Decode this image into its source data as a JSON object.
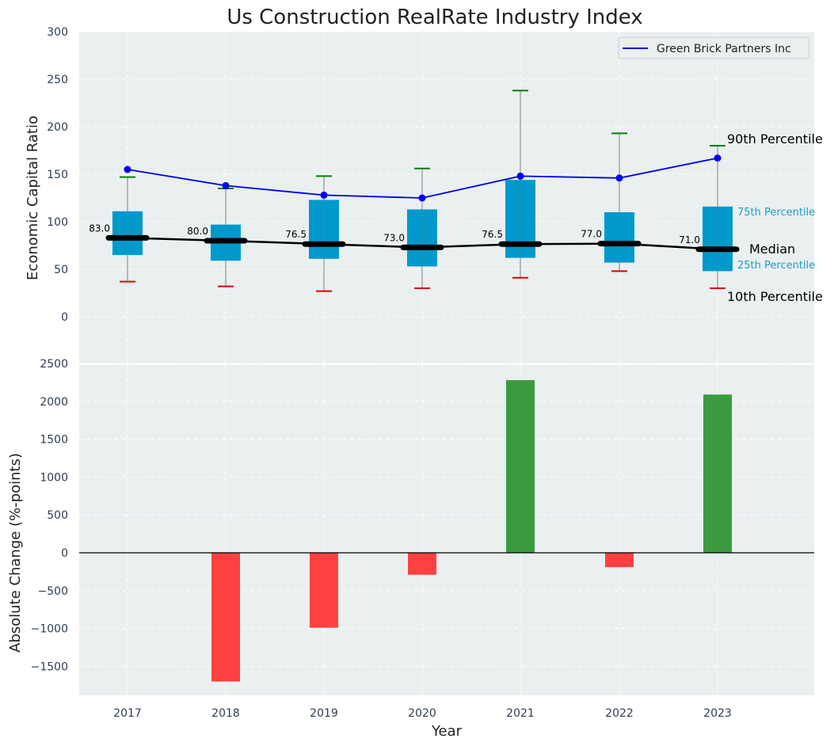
{
  "chart_data": [
    {
      "type": "box",
      "title": "Us Construction RealRate Industry Index",
      "ylabel": "Economic Capital Ratio",
      "ylim": [
        0,
        300
      ],
      "yticks": [
        0,
        50,
        100,
        150,
        200,
        250,
        300
      ],
      "categories": [
        "2017",
        "2018",
        "2019",
        "2020",
        "2021",
        "2022",
        "2023"
      ],
      "p10": [
        37,
        32,
        27,
        30,
        41,
        48,
        30
      ],
      "p25": [
        65,
        59,
        61,
        53,
        62,
        57,
        48
      ],
      "median": [
        83.0,
        80.0,
        76.5,
        73.0,
        76.5,
        77.0,
        71.0
      ],
      "median_labels": [
        "83.0",
        "80.0",
        "76.5",
        "73.0",
        "76.5",
        "77.0",
        "71.0"
      ],
      "p75": [
        111,
        97,
        123,
        113,
        144,
        110,
        116
      ],
      "p90": [
        147,
        135,
        148,
        156,
        238,
        193,
        180
      ],
      "series": [
        {
          "name": "Green Brick Partners Inc",
          "values": [
            155,
            138,
            128,
            125,
            148,
            146,
            167
          ],
          "color": "#0000ee"
        }
      ],
      "annotations": {
        "p90": "90th Percentile",
        "p75": "75th Percentile",
        "median": "Median",
        "p25": "25th Percentile",
        "p10": "10th Percentile"
      },
      "colors": {
        "box": "#0099cc",
        "median": "#000000",
        "p90_cap": "#008000",
        "p10_cap": "#dd0000",
        "background": "#eaeff0"
      },
      "grid": true,
      "legend": "top-right"
    },
    {
      "type": "bar",
      "ylabel": "Absolute Change (%-points)",
      "xlabel": "Year",
      "ylim": [
        -1870,
        2500
      ],
      "yticks": [
        -1500,
        -1000,
        -500,
        0,
        500,
        1000,
        1500,
        2000,
        2500
      ],
      "ytick_labels": [
        "−1500",
        "−1000",
        "−500",
        "0",
        "500",
        "1000",
        "1500",
        "2000",
        "2500"
      ],
      "categories": [
        "2017",
        "2018",
        "2019",
        "2020",
        "2021",
        "2022",
        "2023"
      ],
      "values": [
        0,
        -1700,
        -990,
        -290,
        2280,
        -190,
        2090
      ],
      "colors": {
        "positive": "#3a9c3e",
        "negative": "#ff4040"
      },
      "grid": true
    }
  ]
}
